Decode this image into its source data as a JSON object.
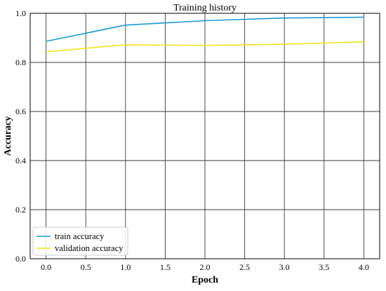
{
  "chart_data": {
    "type": "line",
    "title": "Training history",
    "xlabel": "Epoch",
    "ylabel": "Accuracy",
    "xlim": [
      -0.2,
      4.2
    ],
    "ylim": [
      0.0,
      1.0
    ],
    "xticks": [
      "0.0",
      "0.5",
      "1.0",
      "1.5",
      "2.0",
      "2.5",
      "3.0",
      "3.5",
      "4.0"
    ],
    "yticks": [
      "0.0",
      "0.2",
      "0.4",
      "0.6",
      "0.8",
      "1.0"
    ],
    "grid": true,
    "legend_position": "bottom-left",
    "x": [
      0,
      1,
      2,
      3,
      4
    ],
    "series": [
      {
        "name": "train accuracy",
        "color": "#1a9ad6",
        "values": [
          0.886,
          0.952,
          0.97,
          0.981,
          0.984
        ]
      },
      {
        "name": "validation accuracy",
        "color": "#f2e41e",
        "values": [
          0.843,
          0.872,
          0.869,
          0.874,
          0.884
        ]
      }
    ]
  }
}
